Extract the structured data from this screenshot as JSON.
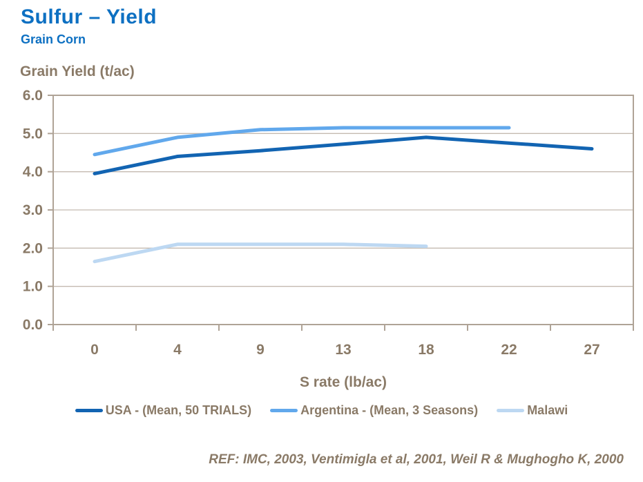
{
  "header": {
    "title": "Sulfur – Yield",
    "subtitle": "Grain Corn"
  },
  "chart_data": {
    "type": "line",
    "title": "",
    "ylabel": "Grain Yield (t/ac)",
    "xlabel": "S rate (lb/ac)",
    "categories": [
      "0",
      "4",
      "9",
      "13",
      "18",
      "22",
      "27"
    ],
    "ylim": [
      0,
      6
    ],
    "ytick_step": 1,
    "ytick_decimals": 1,
    "grid": "horizontal",
    "legend_position": "bottom",
    "series": [
      {
        "name": "USA - (Mean, 50 TRIALS)",
        "color": "#1264b2",
        "values": [
          3.95,
          4.4,
          4.55,
          4.72,
          4.9,
          4.75,
          4.6
        ]
      },
      {
        "name": "Argentina - (Mean, 3 Seasons)",
        "color": "#61a8ec",
        "values": [
          4.45,
          4.9,
          5.1,
          5.15,
          5.15,
          5.15
        ]
      },
      {
        "name": "Malawi",
        "color": "#bdd8f2",
        "values": [
          1.65,
          2.1,
          2.1,
          2.1,
          2.05
        ]
      }
    ]
  },
  "footer": {
    "ref": "REF: IMC, 2003, Ventimigla et al, 2001, Weil R & Mughogho K, 2000"
  },
  "colors": {
    "title": "#0d70c2",
    "text": "#8a7a67",
    "grid": "#c4bab0",
    "axis": "#afa396"
  }
}
